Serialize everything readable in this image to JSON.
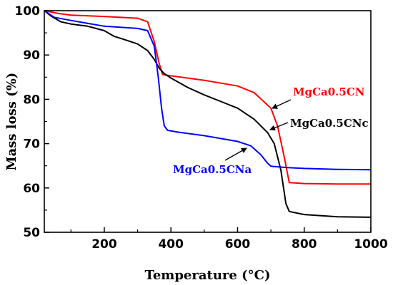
{
  "chart_data": {
    "type": "line",
    "xlabel": "Temperature (°C)",
    "ylabel": "Mass loss (%)",
    "xlim": [
      20,
      1000
    ],
    "ylim": [
      50,
      100
    ],
    "x_ticks": [
      200,
      400,
      600,
      800,
      1000
    ],
    "y_ticks": [
      50,
      60,
      70,
      80,
      90,
      100
    ],
    "series": [
      {
        "name": "MgCa0.5CN",
        "color": "#ff0000",
        "points": [
          [
            20,
            100
          ],
          [
            60,
            99.4
          ],
          [
            100,
            99
          ],
          [
            200,
            98.7
          ],
          [
            300,
            98.3
          ],
          [
            330,
            97.5
          ],
          [
            350,
            93
          ],
          [
            365,
            88
          ],
          [
            375,
            85.6
          ],
          [
            400,
            85.3
          ],
          [
            500,
            84.3
          ],
          [
            600,
            83
          ],
          [
            650,
            81.5
          ],
          [
            700,
            78
          ],
          [
            720,
            74
          ],
          [
            740,
            67
          ],
          [
            755,
            61.2
          ],
          [
            800,
            61
          ],
          [
            900,
            60.9
          ],
          [
            1000,
            60.9
          ]
        ]
      },
      {
        "name": "MgCa0.5CNc",
        "color": "#000000",
        "points": [
          [
            20,
            100
          ],
          [
            40,
            98.8
          ],
          [
            70,
            97.5
          ],
          [
            100,
            97
          ],
          [
            150,
            96.5
          ],
          [
            200,
            95.5
          ],
          [
            230,
            94.2
          ],
          [
            260,
            93.5
          ],
          [
            300,
            92.5
          ],
          [
            330,
            91
          ],
          [
            350,
            89
          ],
          [
            365,
            87
          ],
          [
            380,
            85.8
          ],
          [
            400,
            84.8
          ],
          [
            450,
            82.7
          ],
          [
            500,
            81
          ],
          [
            550,
            79.5
          ],
          [
            600,
            78
          ],
          [
            650,
            75.5
          ],
          [
            690,
            72.5
          ],
          [
            710,
            70
          ],
          [
            730,
            64
          ],
          [
            745,
            56.5
          ],
          [
            755,
            54.7
          ],
          [
            800,
            54
          ],
          [
            900,
            53.5
          ],
          [
            1000,
            53.4
          ]
        ]
      },
      {
        "name": "MgCa0.5CNa",
        "color": "#0000ff",
        "points": [
          [
            20,
            100
          ],
          [
            50,
            98.5
          ],
          [
            100,
            97.8
          ],
          [
            200,
            96.5
          ],
          [
            300,
            96
          ],
          [
            330,
            95.5
          ],
          [
            350,
            92
          ],
          [
            362,
            85
          ],
          [
            372,
            78
          ],
          [
            380,
            74
          ],
          [
            390,
            73
          ],
          [
            420,
            72.6
          ],
          [
            500,
            71.8
          ],
          [
            600,
            70.5
          ],
          [
            640,
            69.5
          ],
          [
            670,
            67.5
          ],
          [
            690,
            65.6
          ],
          [
            700,
            64.9
          ],
          [
            750,
            64.6
          ],
          [
            800,
            64.4
          ],
          [
            900,
            64.2
          ],
          [
            1000,
            64.1
          ]
        ]
      }
    ],
    "annotations": [
      {
        "text": "MgCa0.5CN",
        "color": "#ff0000",
        "series": "MgCa0.5CN",
        "arrow_target": [
          720,
          75.5
        ]
      },
      {
        "text": "MgCa0.5CNc",
        "color": "#000000",
        "series": "MgCa0.5CNc",
        "arrow_target": [
          695,
          72.5
        ]
      },
      {
        "text": "MgCa0.5CNa",
        "color": "#0000ff",
        "series": "MgCa0.5CNa",
        "arrow_target": [
          650,
          69.5
        ]
      }
    ]
  }
}
